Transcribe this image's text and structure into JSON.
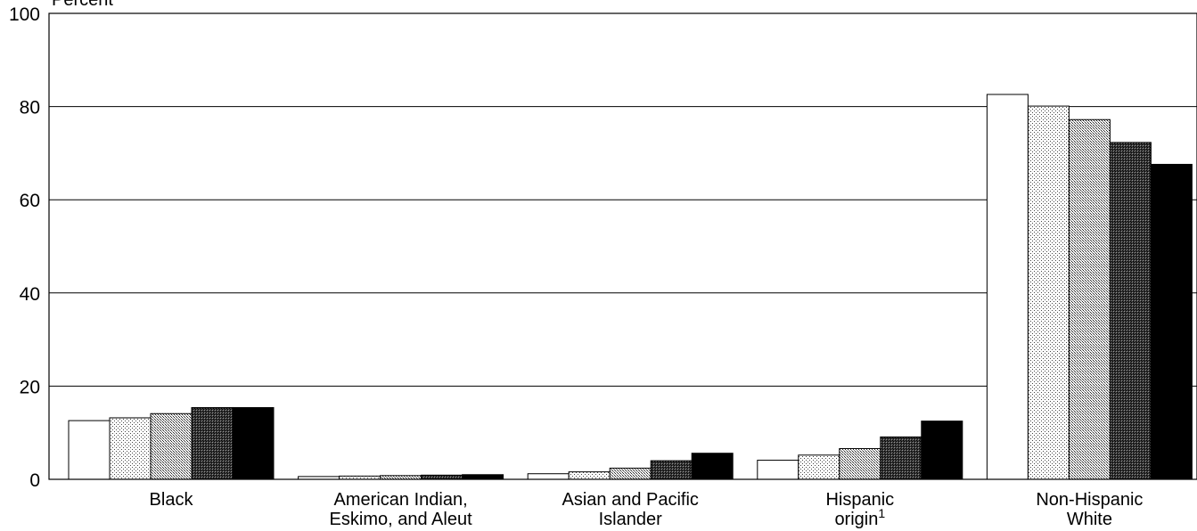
{
  "chart_data": {
    "type": "bar",
    "ylabel": "Percent",
    "ylim": [
      0,
      100
    ],
    "yticks": [
      "0",
      "20",
      "40",
      "60",
      "80",
      "100"
    ],
    "grid": "horizontal",
    "categories": [
      {
        "lines": [
          "Black"
        ],
        "sup": ""
      },
      {
        "lines": [
          "American Indian,",
          "Eskimo, and Aleut"
        ],
        "sup": ""
      },
      {
        "lines": [
          "Asian and Pacific",
          "Islander"
        ],
        "sup": ""
      },
      {
        "lines": [
          "Hispanic",
          "origin"
        ],
        "sup": "1"
      },
      {
        "lines": [
          "Non-Hispanic",
          "White"
        ],
        "sup": ""
      }
    ],
    "series": [
      {
        "fill": "pat-white",
        "values": [
          12.6,
          0.6,
          1.2,
          4.1,
          82.6
        ]
      },
      {
        "fill": "pat-dots-light",
        "values": [
          13.2,
          0.7,
          1.6,
          5.2,
          80.1
        ]
      },
      {
        "fill": "pat-dots-medium",
        "values": [
          14.1,
          0.8,
          2.4,
          6.6,
          77.2
        ]
      },
      {
        "fill": "pat-crosshatch-dark",
        "values": [
          15.4,
          0.9,
          4.0,
          9.1,
          72.3
        ]
      },
      {
        "fill": "pat-black",
        "values": [
          15.4,
          1.0,
          5.6,
          12.5,
          67.6
        ]
      }
    ]
  }
}
